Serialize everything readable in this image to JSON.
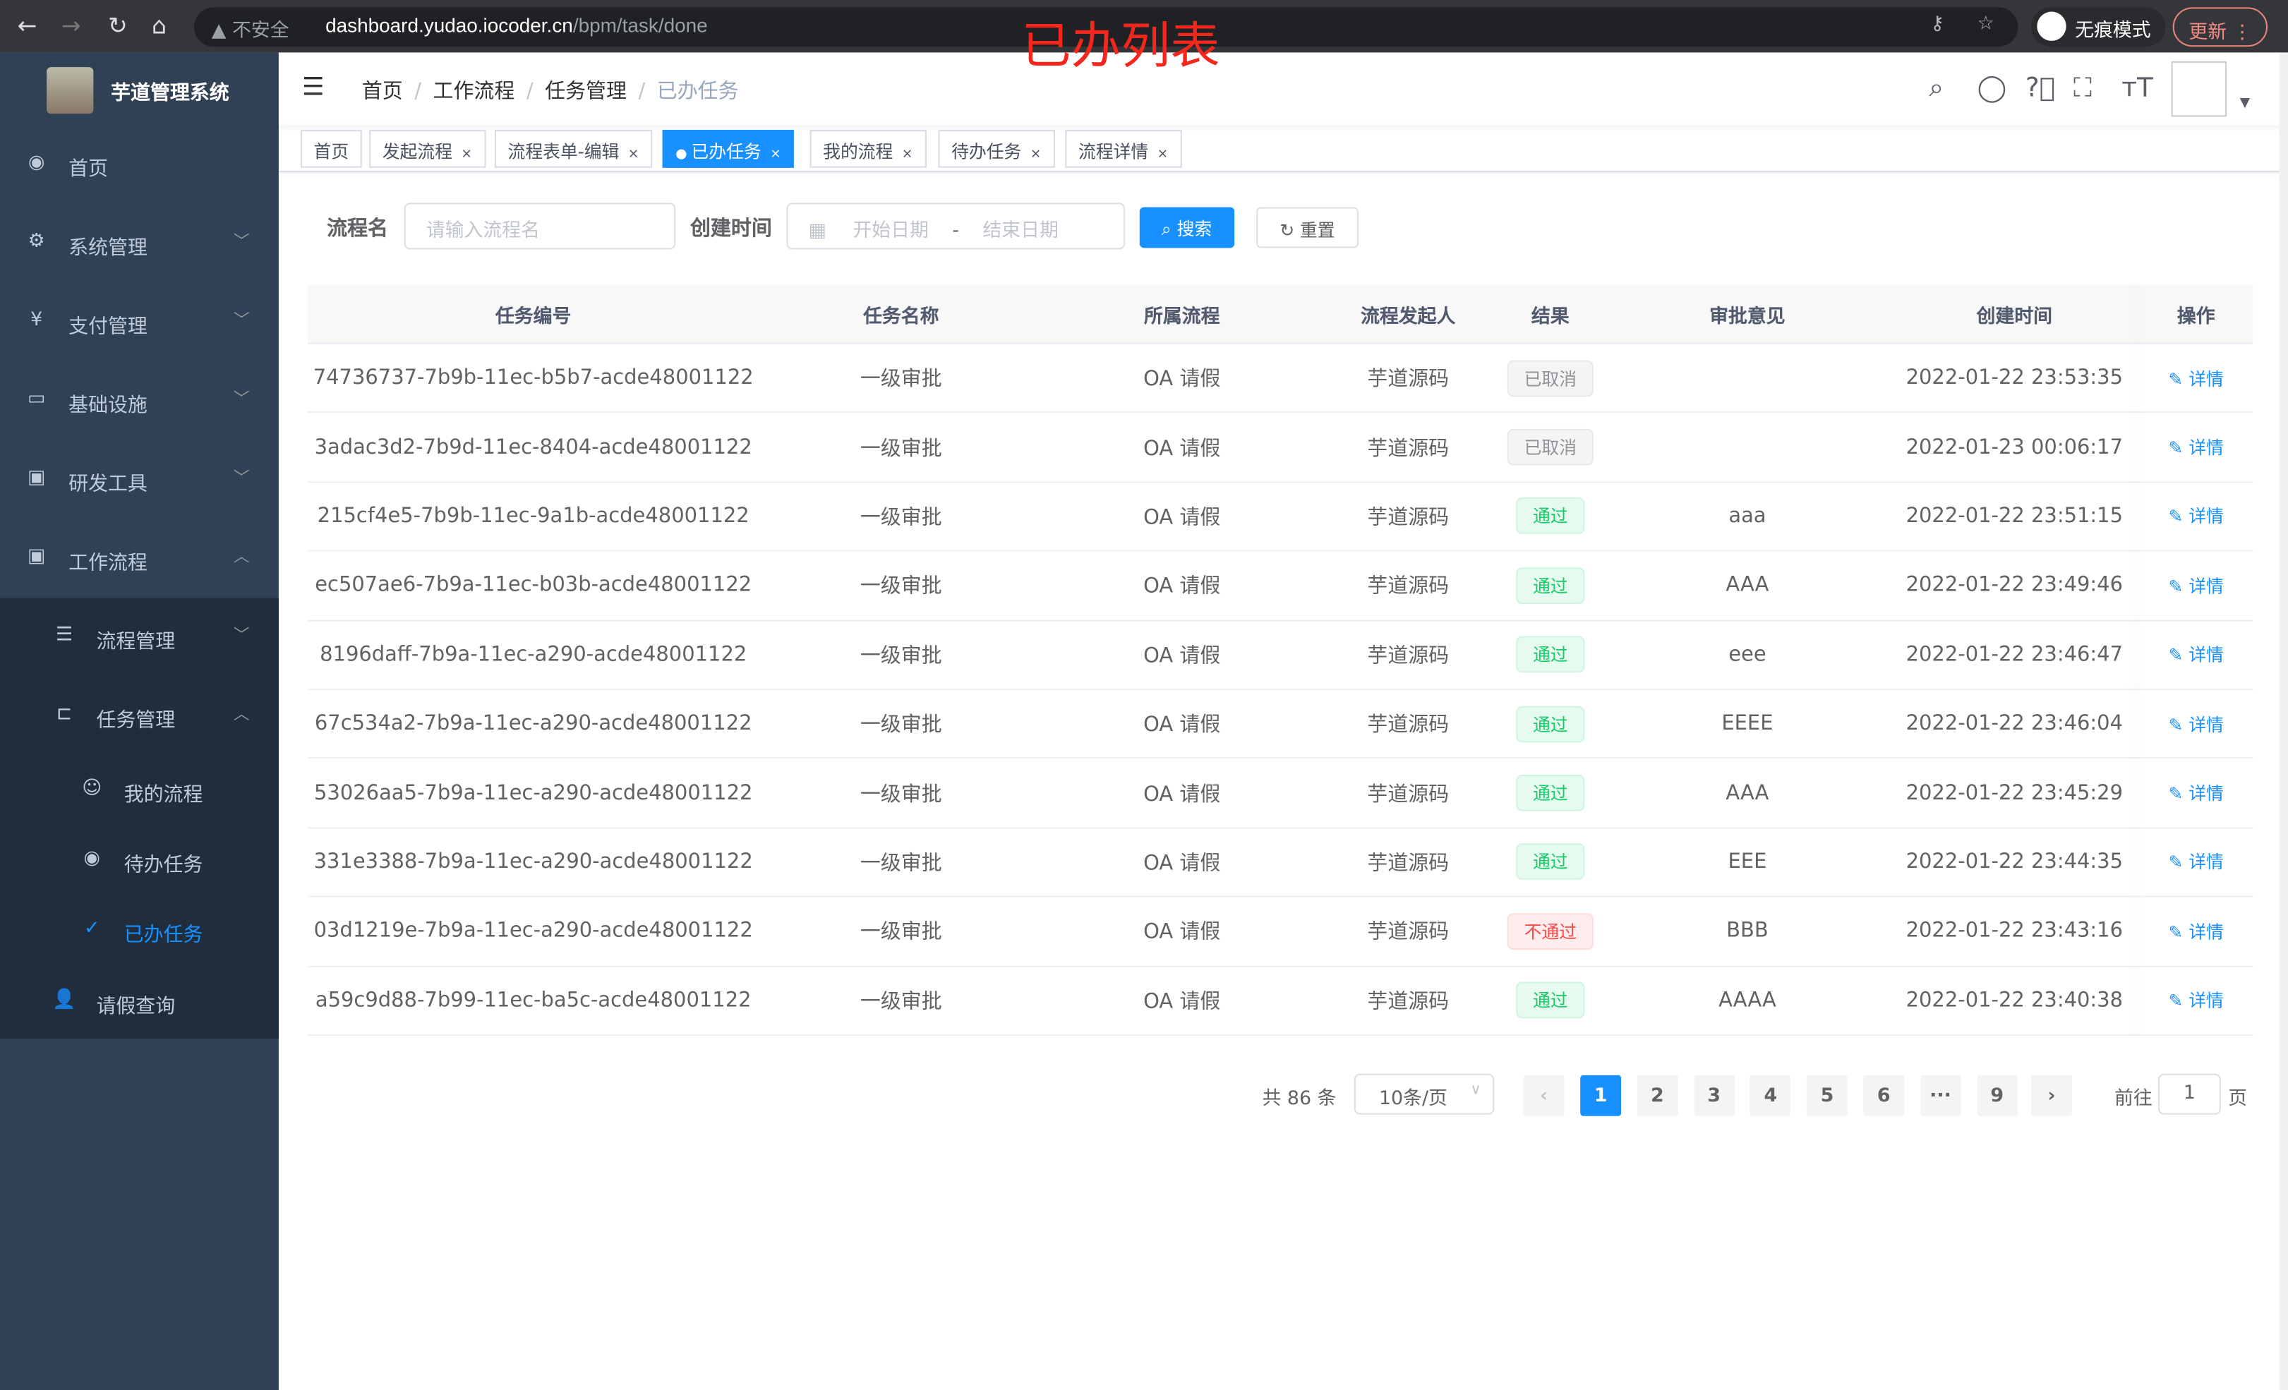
{
  "browser": {
    "insecure": "不安全",
    "url_host": "dashboard.yudao.iocoder.cn",
    "url_path": "/bpm/task/done",
    "incognito": "无痕模式",
    "update": "更新"
  },
  "overlay_title": "已办列表",
  "app": {
    "name": "芋道管理系统"
  },
  "sidebar": {
    "items": [
      {
        "label": "首页",
        "icon": "dashboard-icon"
      },
      {
        "label": "系统管理",
        "icon": "gear-icon"
      },
      {
        "label": "支付管理",
        "icon": "yen-icon"
      },
      {
        "label": "基础设施",
        "icon": "monitor-icon"
      },
      {
        "label": "研发工具",
        "icon": "toolbox-icon"
      },
      {
        "label": "工作流程",
        "icon": "toolbox-icon"
      },
      {
        "label": "流程管理",
        "icon": "list-icon"
      },
      {
        "label": "任务管理",
        "icon": "tree-icon"
      },
      {
        "label": "我的流程",
        "icon": "chat-icon"
      },
      {
        "label": "待办任务",
        "icon": "eye-icon"
      },
      {
        "label": "已办任务",
        "icon": "check-icon"
      },
      {
        "label": "请假查询",
        "icon": "user-icon"
      }
    ],
    "active": "已办任务"
  },
  "breadcrumb": [
    "首页",
    "工作流程",
    "任务管理",
    "已办任务"
  ],
  "tags": [
    {
      "label": "首页"
    },
    {
      "label": "发起流程"
    },
    {
      "label": "流程表单-编辑"
    },
    {
      "label": "已办任务",
      "active": true
    },
    {
      "label": "我的流程"
    },
    {
      "label": "待办任务"
    },
    {
      "label": "流程详情"
    }
  ],
  "search": {
    "name_label": "流程名",
    "name_placeholder": "请输入流程名",
    "time_label": "创建时间",
    "start_placeholder": "开始日期",
    "sep": "-",
    "end_placeholder": "结束日期",
    "search_btn": "搜索",
    "reset_btn": "重置"
  },
  "table": {
    "headers": [
      "任务编号",
      "任务名称",
      "所属流程",
      "流程发起人",
      "结果",
      "审批意见",
      "创建时间",
      "操作"
    ],
    "rows": [
      {
        "id": "74736737-7b9b-11ec-b5b7-acde48001122",
        "name": "一级审批",
        "process": "OA 请假",
        "initiator": "芋道源码",
        "result": "已取消",
        "result_type": "info",
        "comment": "",
        "time": "2022-01-22 23:53:35",
        "op": "详情"
      },
      {
        "id": "3adac3d2-7b9d-11ec-8404-acde48001122",
        "name": "一级审批",
        "process": "OA 请假",
        "initiator": "芋道源码",
        "result": "已取消",
        "result_type": "info",
        "comment": "",
        "time": "2022-01-23 00:06:17",
        "op": "详情"
      },
      {
        "id": "215cf4e5-7b9b-11ec-9a1b-acde48001122",
        "name": "一级审批",
        "process": "OA 请假",
        "initiator": "芋道源码",
        "result": "通过",
        "result_type": "ok",
        "comment": "aaa",
        "time": "2022-01-22 23:51:15",
        "op": "详情"
      },
      {
        "id": "ec507ae6-7b9a-11ec-b03b-acde48001122",
        "name": "一级审批",
        "process": "OA 请假",
        "initiator": "芋道源码",
        "result": "通过",
        "result_type": "ok",
        "comment": "AAA",
        "time": "2022-01-22 23:49:46",
        "op": "详情"
      },
      {
        "id": "8196daff-7b9a-11ec-a290-acde48001122",
        "name": "一级审批",
        "process": "OA 请假",
        "initiator": "芋道源码",
        "result": "通过",
        "result_type": "ok",
        "comment": "eee",
        "time": "2022-01-22 23:46:47",
        "op": "详情"
      },
      {
        "id": "67c534a2-7b9a-11ec-a290-acde48001122",
        "name": "一级审批",
        "process": "OA 请假",
        "initiator": "芋道源码",
        "result": "通过",
        "result_type": "ok",
        "comment": "EEEE",
        "time": "2022-01-22 23:46:04",
        "op": "详情"
      },
      {
        "id": "53026aa5-7b9a-11ec-a290-acde48001122",
        "name": "一级审批",
        "process": "OA 请假",
        "initiator": "芋道源码",
        "result": "通过",
        "result_type": "ok",
        "comment": "AAA",
        "time": "2022-01-22 23:45:29",
        "op": "详情"
      },
      {
        "id": "331e3388-7b9a-11ec-a290-acde48001122",
        "name": "一级审批",
        "process": "OA 请假",
        "initiator": "芋道源码",
        "result": "通过",
        "result_type": "ok",
        "comment": "EEE",
        "time": "2022-01-22 23:44:35",
        "op": "详情"
      },
      {
        "id": "03d1219e-7b9a-11ec-a290-acde48001122",
        "name": "一级审批",
        "process": "OA 请假",
        "initiator": "芋道源码",
        "result": "不通过",
        "result_type": "bad",
        "comment": "BBB",
        "time": "2022-01-22 23:43:16",
        "op": "详情"
      },
      {
        "id": "a59c9d88-7b99-11ec-ba5c-acde48001122",
        "name": "一级审批",
        "process": "OA 请假",
        "initiator": "芋道源码",
        "result": "通过",
        "result_type": "ok",
        "comment": "AAAA",
        "time": "2022-01-22 23:40:38",
        "op": "详情"
      }
    ]
  },
  "pagination": {
    "total": "共 86 条",
    "page_size": "10条/页",
    "pages": [
      "1",
      "2",
      "3",
      "4",
      "5",
      "6",
      "···",
      "9"
    ],
    "current": "1",
    "goto_label": "前往",
    "goto_value": "1",
    "goto_suffix": "页"
  },
  "colors": {
    "primary": "#1890ff",
    "sidebar": "#304156",
    "submenu": "#1f2d3d",
    "success": "#13ce66",
    "danger": "#ff4949"
  }
}
